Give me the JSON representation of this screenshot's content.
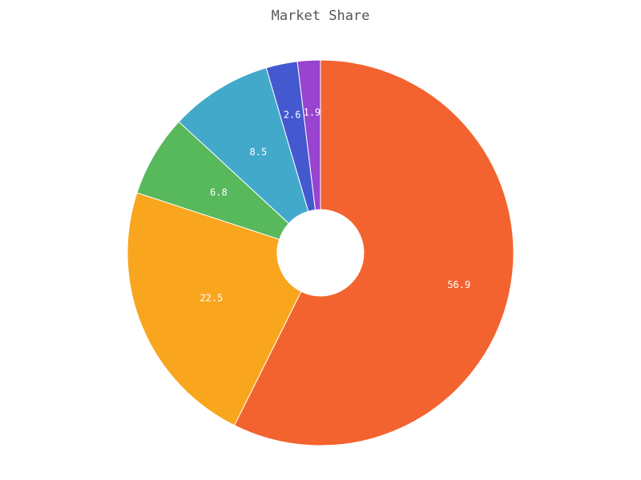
{
  "chart_data": {
    "type": "pie",
    "title": "Market Share",
    "series": [
      {
        "values": [
          56.9,
          22.5,
          6.8,
          8.5,
          2.6,
          1.9
        ],
        "labels": [
          "56.9",
          "22.5",
          "6.8",
          "8.5",
          "2.6",
          "1.9"
        ],
        "colors": [
          "#f3632f",
          "#f9a61e",
          "#58b85c",
          "#42a9cb",
          "#4459cf",
          "#9943d1"
        ]
      }
    ],
    "style": "donut",
    "start": "top, clockwise",
    "legend": "none"
  }
}
